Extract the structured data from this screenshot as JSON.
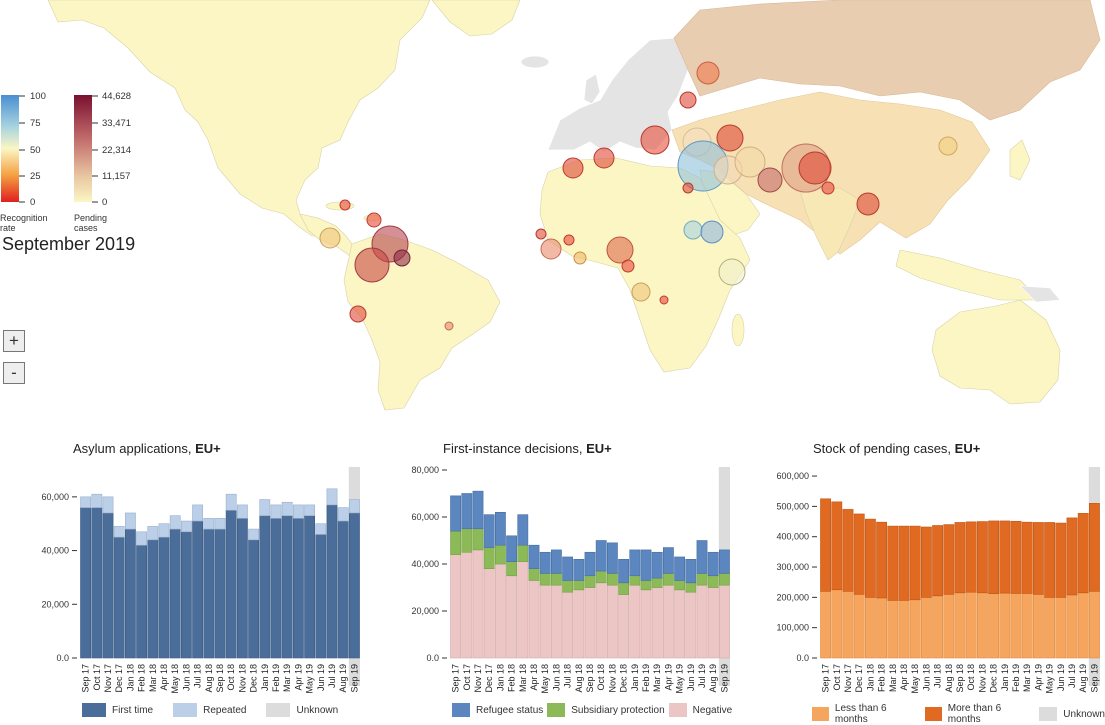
{
  "map": {
    "date": "September 2019",
    "zoom_in": "+",
    "zoom_out": "-",
    "legend_rate": {
      "title": "Recognition rate",
      "ticks": [
        "100",
        "75",
        "50",
        "25",
        "0"
      ]
    },
    "legend_pending": {
      "title": "Pending cases",
      "ticks": [
        "44,628",
        "33,471",
        "22,314",
        "11,157",
        "0"
      ]
    },
    "colors": {
      "ocean": "#ffffff",
      "land": "#fbf6c4",
      "eu": "#e4e4e4",
      "russia": "#e8cdb0",
      "border": "#cfcfb0"
    }
  },
  "charts": [
    {
      "title": "Asylum applications, ",
      "title_bold": "EU+",
      "y_ticks": [
        "60,000",
        "40,000",
        "20,000",
        "0.0"
      ],
      "legend": [
        "First time",
        "Repeated",
        "Unknown"
      ],
      "colors": [
        "#4a6d99",
        "#bccfe8",
        "#dcdcdc"
      ]
    },
    {
      "title": "First-instance decisions, ",
      "title_bold": "EU+",
      "y_ticks": [
        "80,000",
        "60,000",
        "40,000",
        "20,000",
        "0.0"
      ],
      "legend": [
        "Refugee status",
        "Subsidiary protection",
        "Negative"
      ],
      "colors": [
        "#5b86c0",
        "#8dba58",
        "#ebc6c4"
      ]
    },
    {
      "title": "Stock of pending cases, ",
      "title_bold": "EU+",
      "y_ticks": [
        "600,000",
        "500,000",
        "400,000",
        "300,000",
        "200,000",
        "100,000",
        "0.0"
      ],
      "legend": [
        "Less than 6 months",
        "More than 6 months",
        "Unknown"
      ],
      "colors": [
        "#f6a55e",
        "#e06a22",
        "#dcdcdc"
      ]
    }
  ],
  "chart_data": [
    {
      "type": "bar",
      "title": "Asylum applications, EU+",
      "categories": [
        "Sep 17",
        "Oct 17",
        "Nov 17",
        "Dec 17",
        "Jan 18",
        "Feb 18",
        "Mar 18",
        "Apr 18",
        "May 18",
        "Jun 18",
        "Jul 18",
        "Aug 18",
        "Sep 18",
        "Oct 18",
        "Nov 18",
        "Dec 18",
        "Jan 19",
        "Feb 19",
        "Mar 19",
        "Apr 19",
        "May 19",
        "Jun 19",
        "Jul 19",
        "Aug 19",
        "Sep 19"
      ],
      "series": [
        {
          "name": "First time",
          "values": [
            56000,
            56000,
            54000,
            45000,
            48000,
            42000,
            44000,
            45000,
            48000,
            47000,
            51000,
            48000,
            48000,
            55000,
            52000,
            44000,
            53000,
            52000,
            53000,
            52000,
            53000,
            46000,
            57000,
            51000,
            54000
          ]
        },
        {
          "name": "Repeated",
          "values": [
            4000,
            5000,
            6000,
            4000,
            6000,
            5000,
            5000,
            5000,
            5000,
            4000,
            6000,
            4000,
            4000,
            6000,
            5000,
            4000,
            6000,
            5000,
            5000,
            5000,
            4000,
            4000,
            6000,
            5000,
            5000
          ]
        }
      ],
      "highlight": "Sep 19",
      "ylim": [
        0,
        70000
      ]
    },
    {
      "type": "bar",
      "title": "First-instance decisions, EU+",
      "categories": [
        "Sep 17",
        "Oct 17",
        "Nov 17",
        "Dec 17",
        "Jan 18",
        "Feb 18",
        "Mar 18",
        "Apr 18",
        "May 18",
        "Jun 18",
        "Jul 18",
        "Aug 18",
        "Sep 18",
        "Oct 18",
        "Nov 18",
        "Dec 18",
        "Jan 19",
        "Feb 19",
        "Mar 19",
        "Apr 19",
        "May 19",
        "Jun 19",
        "Jul 19",
        "Aug 19",
        "Sep 19"
      ],
      "series": [
        {
          "name": "Negative",
          "values": [
            44000,
            45000,
            46000,
            38000,
            40000,
            35000,
            41000,
            33000,
            31000,
            31000,
            28000,
            29000,
            30000,
            32000,
            31000,
            27000,
            31000,
            29000,
            30000,
            31000,
            29000,
            28000,
            31000,
            30000,
            31000
          ]
        },
        {
          "name": "Subsidiary protection",
          "values": [
            10000,
            10000,
            9000,
            9000,
            8000,
            6000,
            7000,
            5000,
            5000,
            5000,
            5000,
            4000,
            5000,
            5000,
            5000,
            5000,
            4000,
            4000,
            4000,
            5000,
            4000,
            4000,
            5000,
            5000,
            5000
          ]
        },
        {
          "name": "Refugee status",
          "values": [
            15000,
            15000,
            16000,
            14000,
            14000,
            11000,
            13000,
            10000,
            9000,
            10000,
            10000,
            9000,
            10000,
            13000,
            13000,
            10000,
            11000,
            13000,
            11000,
            11000,
            10000,
            10000,
            14000,
            10000,
            10000
          ]
        }
      ],
      "highlight": "Sep 19",
      "ylim": [
        0,
        80000
      ]
    },
    {
      "type": "bar",
      "title": "Stock of pending cases, EU+",
      "categories": [
        "Sep 17",
        "Oct 17",
        "Nov 17",
        "Dec 17",
        "Jan 18",
        "Feb 18",
        "Mar 18",
        "Apr 18",
        "May 18",
        "Jun 18",
        "Jul 18",
        "Aug 18",
        "Sep 18",
        "Oct 18",
        "Nov 18",
        "Dec 18",
        "Jan 19",
        "Feb 19",
        "Mar 19",
        "Apr 19",
        "May 19",
        "Jun 19",
        "Jul 19",
        "Aug 19",
        "Sep 19"
      ],
      "series": [
        {
          "name": "Less than 6 months",
          "values": [
            220000,
            225000,
            220000,
            210000,
            200000,
            198000,
            190000,
            190000,
            192000,
            200000,
            205000,
            210000,
            215000,
            217000,
            215000,
            212000,
            214000,
            213000,
            213000,
            210000,
            200000,
            200000,
            208000,
            215000,
            220000
          ]
        },
        {
          "name": "More than 6 months",
          "values": [
            305000,
            290000,
            270000,
            265000,
            258000,
            250000,
            245000,
            245000,
            243000,
            232000,
            232000,
            230000,
            232000,
            232000,
            235000,
            240000,
            238000,
            238000,
            235000,
            237000,
            247000,
            245000,
            254000,
            262000,
            290000
          ]
        }
      ],
      "highlight": "Sep 19",
      "ylim": [
        0,
        620000
      ]
    }
  ]
}
